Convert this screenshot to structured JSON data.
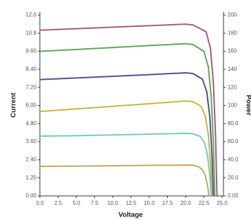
{
  "chart_data": {
    "type": "line",
    "xlabel": "Voltage",
    "ylabel": "Current",
    "y2label": "Power",
    "xlim": [
      0,
      25
    ],
    "xticks": [
      {
        "value": 0,
        "label": "0.0"
      },
      2.5,
      {
        "value": 5,
        "label": "5.0"
      },
      7.5,
      {
        "value": 10,
        "label": "10.0"
      },
      12.5,
      {
        "value": 15,
        "label": "15.0"
      },
      17.5,
      {
        "value": 20,
        "label": "20.0"
      },
      22.5,
      {
        "value": 25,
        "label": "25.0"
      }
    ],
    "ylim": [
      0,
      12
    ],
    "yticks": [
      {
        "value": 0,
        "label": "0.00"
      },
      {
        "value": 1.2,
        "label": "1.20"
      },
      {
        "value": 2.4,
        "label": "2.40"
      },
      {
        "value": 3.6,
        "label": "3.60"
      },
      {
        "value": 4.8,
        "label": "4.80"
      },
      {
        "value": 6,
        "label": "6.00"
      },
      {
        "value": 7.2,
        "label": "7.20"
      },
      {
        "value": 8.4,
        "label": "8.40"
      },
      {
        "value": 9.6,
        "label": "9.60"
      },
      {
        "value": 10.8,
        "label": "10.8"
      },
      {
        "value": 12,
        "label": "12.0"
      }
    ],
    "y2lim": [
      0,
      200
    ],
    "y2ticks": [
      {
        "value": 0,
        "label": "0.00"
      },
      {
        "value": 20,
        "label": "20.0"
      },
      {
        "value": 40,
        "label": "40.0"
      },
      {
        "value": 60,
        "label": "60.0"
      },
      {
        "value": 80,
        "label": "80.0"
      },
      100,
      120,
      140,
      160,
      180,
      200
    ],
    "series": [
      {
        "color": "#a35c72",
        "x": [
          0,
          5,
          10,
          15,
          20,
          21,
          22.8,
          23.4,
          23.8,
          24.1,
          24.3
        ],
        "values": [
          11.0,
          11.1,
          11.2,
          11.3,
          11.4,
          11.35,
          10.9,
          9.8,
          7.5,
          4.0,
          0
        ]
      },
      {
        "color": "#5aa85a",
        "x": [
          0,
          5,
          10,
          15,
          20,
          21,
          22.5,
          23.1,
          23.5,
          23.8,
          24.0
        ],
        "values": [
          9.6,
          9.72,
          9.85,
          9.98,
          10.1,
          10.05,
          9.6,
          8.6,
          6.6,
          3.5,
          0
        ]
      },
      {
        "color": "#4b4f8e",
        "x": [
          0,
          5,
          10,
          15,
          20,
          21,
          22.3,
          22.9,
          23.3,
          23.6,
          23.8
        ],
        "values": [
          7.72,
          7.83,
          7.94,
          8.05,
          8.17,
          8.12,
          7.75,
          6.9,
          5.3,
          2.8,
          0
        ]
      },
      {
        "color": "#c9b43c",
        "x": [
          0,
          5,
          10,
          15,
          20,
          21,
          22.1,
          22.7,
          23.1,
          23.4,
          23.6
        ],
        "values": [
          5.6,
          5.78,
          5.95,
          6.12,
          6.3,
          6.26,
          5.95,
          5.3,
          4.1,
          2.2,
          0
        ]
      },
      {
        "color": "#72cbc5",
        "x": [
          0,
          5,
          10,
          15,
          20,
          21,
          22.0,
          22.6,
          23.0,
          23.3,
          23.5
        ],
        "values": [
          3.97,
          4.0,
          4.05,
          4.1,
          4.15,
          4.13,
          3.95,
          3.5,
          2.7,
          1.45,
          0
        ]
      },
      {
        "color": "#c6a462",
        "x": [
          0,
          5,
          10,
          15,
          20,
          21,
          21.7,
          22.3,
          22.7,
          23.0,
          23.2
        ],
        "values": [
          1.96,
          1.98,
          2.0,
          2.03,
          2.05,
          2.04,
          1.95,
          1.75,
          1.35,
          0.7,
          0
        ]
      }
    ]
  }
}
